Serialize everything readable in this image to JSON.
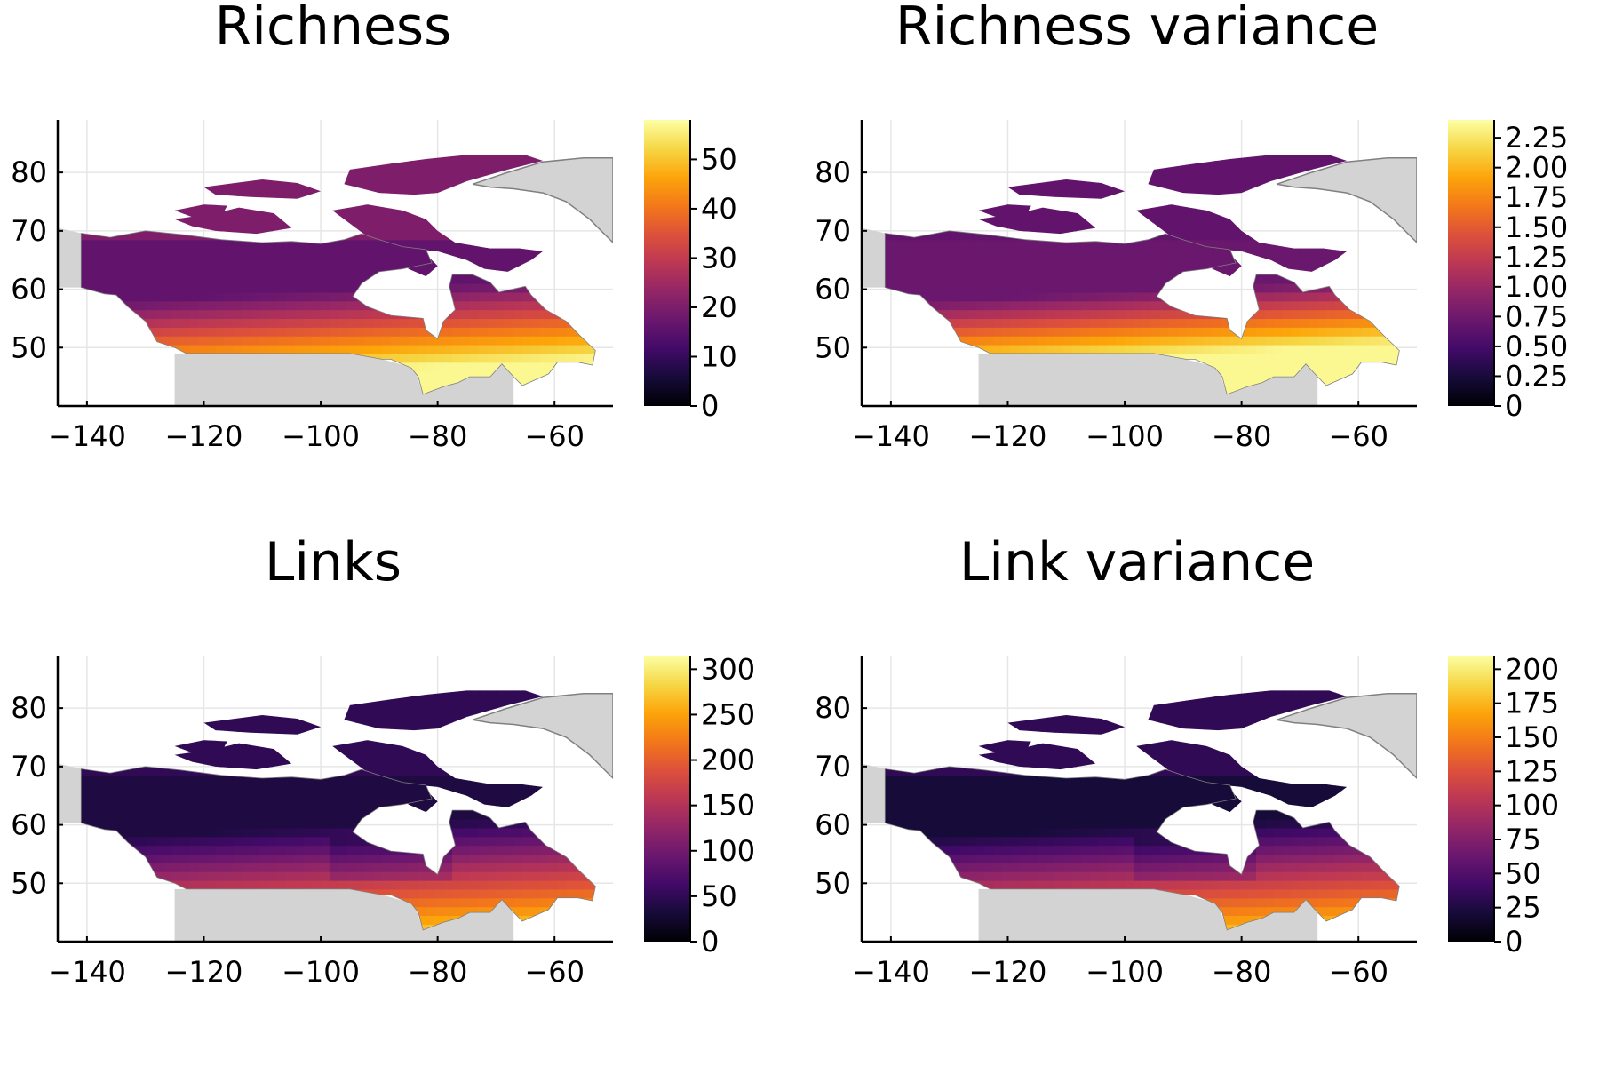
{
  "figure": {
    "panels": [
      {
        "title": "Richness",
        "x_ticks": [
          "−140",
          "−120",
          "−100",
          "−80",
          "−60"
        ],
        "y_ticks": [
          "80",
          "70",
          "60",
          "50"
        ],
        "colorbar": {
          "min": 0,
          "max": 58,
          "ticks": [
            "0",
            "10",
            "20",
            "30",
            "40",
            "50"
          ],
          "tick_values": [
            0,
            10,
            20,
            30,
            40,
            50
          ]
        },
        "pattern": "richness"
      },
      {
        "title": "Richness variance",
        "x_ticks": [
          "−140",
          "−120",
          "−100",
          "−80",
          "−60"
        ],
        "y_ticks": [
          "80",
          "70",
          "60",
          "50"
        ],
        "colorbar": {
          "min": 0,
          "max": 2.4,
          "ticks": [
            "0",
            "0.25",
            "0.50",
            "0.75",
            "1.00",
            "1.25",
            "1.50",
            "1.75",
            "2.00",
            "2.25"
          ],
          "tick_values": [
            0,
            0.25,
            0.5,
            0.75,
            1.0,
            1.25,
            1.5,
            1.75,
            2.0,
            2.25
          ]
        },
        "pattern": "richness_variance"
      },
      {
        "title": "Links",
        "x_ticks": [
          "−140",
          "−120",
          "−100",
          "−80",
          "−60"
        ],
        "y_ticks": [
          "80",
          "70",
          "60",
          "50"
        ],
        "colorbar": {
          "min": 0,
          "max": 315,
          "ticks": [
            "0",
            "50",
            "100",
            "150",
            "200",
            "250",
            "300"
          ],
          "tick_values": [
            0,
            50,
            100,
            150,
            200,
            250,
            300
          ]
        },
        "pattern": "links"
      },
      {
        "title": "Link variance",
        "x_ticks": [
          "−140",
          "−120",
          "−100",
          "−80",
          "−60"
        ],
        "y_ticks": [
          "80",
          "70",
          "60",
          "50"
        ],
        "colorbar": {
          "min": 0,
          "max": 210,
          "ticks": [
            "0",
            "25",
            "50",
            "75",
            "100",
            "125",
            "150",
            "175",
            "200"
          ],
          "tick_values": [
            0,
            25,
            50,
            75,
            100,
            125,
            150,
            175,
            200
          ]
        },
        "pattern": "link_variance"
      }
    ],
    "axis_ranges": {
      "lon": [
        -145,
        -50
      ],
      "lat": [
        40,
        89
      ]
    },
    "colormap": "inferno",
    "colors": {
      "land_background": "#d3d3d3",
      "coastline": "#808080",
      "grid": "#e6e6e6"
    }
  }
}
